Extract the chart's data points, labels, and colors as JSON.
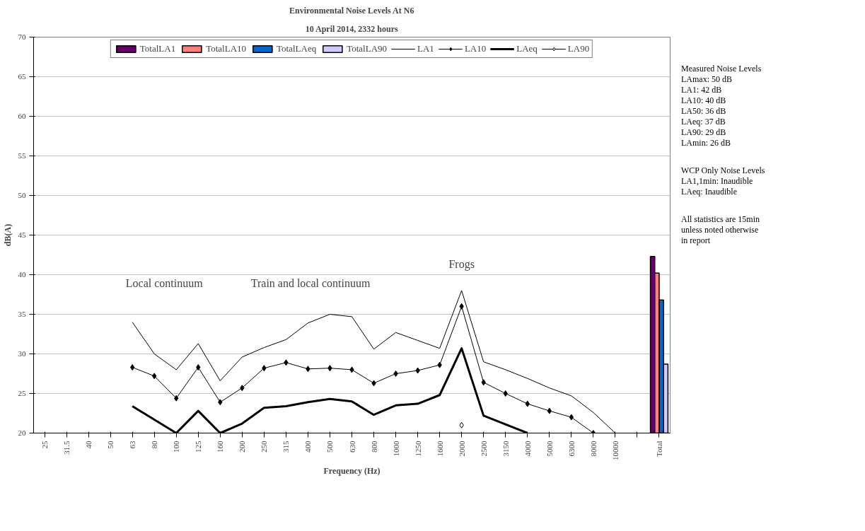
{
  "chart_data": {
    "type": "line",
    "title": "Environmental Noise Levels At N6",
    "subtitle": "10 April 2014, 2332 hours",
    "xlabel": "Frequency (Hz)",
    "ylabel": "dB(A)",
    "categories": [
      "25",
      "31.5",
      "40",
      "50",
      "63",
      "80",
      "100",
      "125",
      "160",
      "200",
      "250",
      "315",
      "400",
      "500",
      "630",
      "800",
      "1000",
      "1250",
      "1600",
      "2000",
      "2500",
      "3150",
      "4000",
      "5000",
      "6300",
      "8000",
      "10000",
      null,
      "Total"
    ],
    "series": [
      {
        "name": "TotalLA1",
        "type": "bar",
        "color": "#660066",
        "values": [
          null,
          null,
          null,
          null,
          null,
          null,
          null,
          null,
          null,
          null,
          null,
          null,
          null,
          null,
          null,
          null,
          null,
          null,
          null,
          null,
          null,
          null,
          null,
          null,
          null,
          null,
          null,
          null,
          42.3
        ]
      },
      {
        "name": "TotalLA10",
        "type": "bar",
        "color": "#ff8080",
        "values": [
          null,
          null,
          null,
          null,
          null,
          null,
          null,
          null,
          null,
          null,
          null,
          null,
          null,
          null,
          null,
          null,
          null,
          null,
          null,
          null,
          null,
          null,
          null,
          null,
          null,
          null,
          null,
          null,
          40.2
        ]
      },
      {
        "name": "TotalLAeq",
        "type": "bar",
        "color": "#0066cc",
        "values": [
          null,
          null,
          null,
          null,
          null,
          null,
          null,
          null,
          null,
          null,
          null,
          null,
          null,
          null,
          null,
          null,
          null,
          null,
          null,
          null,
          null,
          null,
          null,
          null,
          null,
          null,
          null,
          null,
          36.8
        ]
      },
      {
        "name": "TotalLA90",
        "type": "bar",
        "color": "#ccccff",
        "values": [
          null,
          null,
          null,
          null,
          null,
          null,
          null,
          null,
          null,
          null,
          null,
          null,
          null,
          null,
          null,
          null,
          null,
          null,
          null,
          null,
          null,
          null,
          null,
          null,
          null,
          null,
          null,
          null,
          28.7
        ]
      },
      {
        "name": "LA1",
        "color": "#000000",
        "marker": "none",
        "values": [
          null,
          null,
          null,
          null,
          34,
          30,
          28,
          31.3,
          26.6,
          29.6,
          30.8,
          31.8,
          33.9,
          35,
          34.7,
          30.6,
          32.7,
          31.7,
          30.7,
          38,
          29,
          28,
          26.9,
          25.7,
          24.7,
          22.6,
          20,
          null,
          null
        ]
      },
      {
        "name": "LA10",
        "color": "#000000",
        "marker": "diamond",
        "values": [
          null,
          null,
          null,
          null,
          28.3,
          27.2,
          24.4,
          28.3,
          23.9,
          25.7,
          28.2,
          28.9,
          28.1,
          28.2,
          28.0,
          26.3,
          27.5,
          27.9,
          28.6,
          36,
          26.4,
          25,
          23.7,
          22.8,
          22.0,
          20,
          null,
          null,
          null
        ]
      },
      {
        "name": "LAeq",
        "color": "#000000",
        "marker": "none",
        "values": [
          null,
          null,
          null,
          null,
          23.4,
          21.7,
          20,
          22.8,
          20,
          21.2,
          23.2,
          23.4,
          23.9,
          24.3,
          24.0,
          22.3,
          23.5,
          23.7,
          24.8,
          30.7,
          22.2,
          21.1,
          20,
          null,
          null,
          null,
          null,
          null,
          null
        ]
      },
      {
        "name": "LA90",
        "color": "#000000",
        "marker": "diamond",
        "values": [
          null,
          null,
          null,
          null,
          null,
          null,
          null,
          null,
          null,
          null,
          null,
          null,
          null,
          null,
          null,
          null,
          null,
          null,
          null,
          21,
          null,
          null,
          null,
          null,
          null,
          null,
          null,
          null,
          null
        ]
      }
    ],
    "ylim": [
      20,
      70
    ],
    "yticks": [
      20,
      25,
      30,
      35,
      40,
      45,
      50,
      55,
      60,
      65,
      70
    ],
    "grid": "y",
    "legend": "top",
    "annotations": [
      "Local continuum",
      "Train and local continuum",
      "Frogs",
      "Measured Noise Levels\nLAmax: 50 dB\nLA1: 42 dB\nLA10: 40 dB\nLA50: 36 dB\nLAeq: 37 dB\nLA90: 29 dB\nLAmin: 26 dB",
      "WCP Only Noise Levels\nLA1,1min: Inaudible\nLAeq: Inaudible",
      "All statistics are 15min\nunless noted otherwise\nin report"
    ]
  }
}
